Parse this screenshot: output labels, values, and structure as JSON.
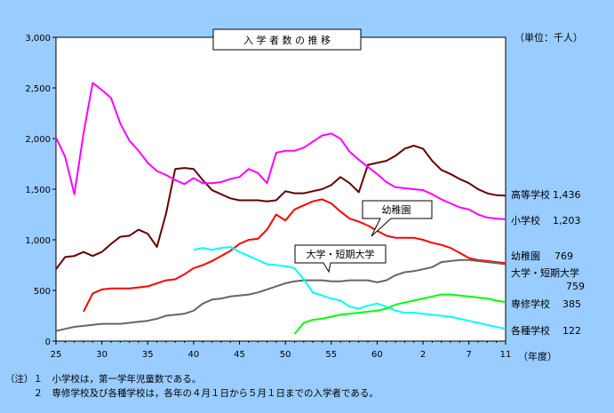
{
  "chart_data": {
    "type": "line",
    "title": "入 学 者 数 の 推 移",
    "unit_label": "（単位：千人）",
    "x_unit_label": "（年度）",
    "x_tick_labels": [
      "25",
      "30",
      "35",
      "40",
      "45",
      "50",
      "55",
      "60",
      "2",
      "7",
      "11"
    ],
    "y_tick_labels": [
      "0",
      "500",
      "1,000",
      "1,500",
      "2,000",
      "2,500",
      "3,000"
    ],
    "ylim": [
      0,
      3000
    ],
    "x_range": [
      "25",
      "11"
    ],
    "grid": false,
    "background": "#ffffff",
    "series": [
      {
        "key": "koko",
        "name": "高等学校",
        "end_value_label": "1,436",
        "color": "#660000",
        "x": [
          25,
          26,
          27,
          28,
          29,
          30,
          31,
          32,
          33,
          34,
          35,
          36,
          37,
          38,
          39,
          40,
          41,
          42,
          43,
          44,
          45,
          46,
          47,
          48,
          49,
          50,
          51,
          52,
          53,
          54,
          55,
          56,
          57,
          58,
          59,
          60,
          61,
          62,
          63,
          "元",
          2,
          3,
          4,
          5,
          6,
          7,
          8,
          9,
          10,
          11
        ],
        "values": [
          710,
          830,
          840,
          880,
          840,
          880,
          960,
          1030,
          1040,
          1100,
          1060,
          930,
          1260,
          1700,
          1710,
          1700,
          1590,
          1490,
          1450,
          1410,
          1390,
          1390,
          1390,
          1380,
          1390,
          1480,
          1460,
          1460,
          1480,
          1500,
          1540,
          1620,
          1560,
          1470,
          1740,
          1760,
          1780,
          1830,
          1900,
          1930,
          1900,
          1780,
          1690,
          1650,
          1600,
          1560,
          1500,
          1460,
          1440,
          1436
        ]
      },
      {
        "key": "sho",
        "name": "小学校",
        "end_value_label": "1,203",
        "color": "#ff00ff",
        "x": [
          25,
          26,
          27,
          28,
          29,
          30,
          31,
          32,
          33,
          34,
          35,
          36,
          37,
          38,
          39,
          40,
          41,
          42,
          43,
          44,
          45,
          46,
          47,
          48,
          49,
          50,
          51,
          52,
          53,
          54,
          55,
          56,
          57,
          58,
          59,
          60,
          61,
          62,
          63,
          "元",
          2,
          3,
          4,
          5,
          6,
          7,
          8,
          9,
          10,
          11
        ],
        "values": [
          2010,
          1820,
          1450,
          2050,
          2550,
          2480,
          2400,
          2150,
          1980,
          1880,
          1760,
          1680,
          1640,
          1590,
          1550,
          1610,
          1560,
          1560,
          1570,
          1600,
          1620,
          1700,
          1660,
          1560,
          1860,
          1880,
          1880,
          1910,
          1970,
          2030,
          2050,
          2000,
          1870,
          1790,
          1720,
          1650,
          1570,
          1520,
          1510,
          1500,
          1490,
          1450,
          1400,
          1360,
          1320,
          1300,
          1250,
          1220,
          1210,
          1203
        ]
      },
      {
        "key": "yochi",
        "name": "幼稚園",
        "end_value_label": "769",
        "callout": "幼稚園",
        "color": "#ff0000",
        "x": [
          28,
          29,
          30,
          31,
          32,
          33,
          34,
          35,
          36,
          37,
          38,
          39,
          40,
          41,
          42,
          43,
          44,
          45,
          46,
          47,
          48,
          49,
          50,
          51,
          52,
          53,
          54,
          55,
          56,
          57,
          58,
          59,
          60,
          61,
          62,
          63,
          "元",
          2,
          3,
          4,
          5,
          6,
          7,
          8,
          9,
          10,
          11
        ],
        "values": [
          290,
          470,
          510,
          520,
          520,
          520,
          530,
          540,
          570,
          600,
          610,
          660,
          720,
          750,
          790,
          840,
          890,
          960,
          1000,
          1010,
          1100,
          1250,
          1190,
          1300,
          1340,
          1380,
          1400,
          1360,
          1280,
          1210,
          1180,
          1140,
          1090,
          1040,
          1020,
          1020,
          1020,
          1000,
          970,
          950,
          920,
          870,
          820,
          800,
          790,
          780,
          769
        ]
      },
      {
        "key": "daigaku",
        "name": "大学・短期大学",
        "end_value_label": "759",
        "callout": "大学・短期大学",
        "color": "#666666",
        "x": [
          25,
          26,
          27,
          28,
          29,
          30,
          31,
          32,
          33,
          34,
          35,
          36,
          37,
          38,
          39,
          40,
          41,
          42,
          43,
          44,
          45,
          46,
          47,
          48,
          49,
          50,
          51,
          52,
          53,
          54,
          55,
          56,
          57,
          58,
          59,
          60,
          61,
          62,
          63,
          "元",
          2,
          3,
          4,
          5,
          6,
          7,
          8,
          9,
          10,
          11
        ],
        "values": [
          100,
          120,
          140,
          150,
          160,
          170,
          170,
          170,
          180,
          190,
          200,
          220,
          250,
          260,
          270,
          300,
          370,
          410,
          420,
          440,
          450,
          460,
          480,
          510,
          540,
          570,
          590,
          600,
          600,
          600,
          590,
          590,
          600,
          600,
          600,
          580,
          600,
          650,
          680,
          690,
          710,
          730,
          780,
          790,
          800,
          800,
          790,
          780,
          770,
          759
        ]
      },
      {
        "key": "kakushu",
        "name": "各種学校",
        "end_value_label": "122",
        "color": "#00ffff",
        "x": [
          40,
          41,
          42,
          43,
          44,
          45,
          46,
          47,
          48,
          49,
          50,
          51,
          52,
          53,
          54,
          55,
          56,
          57,
          58,
          59,
          60,
          61,
          62,
          63,
          "元",
          2,
          3,
          4,
          5,
          6,
          7,
          8,
          9,
          10,
          11
        ],
        "values": [
          900,
          920,
          900,
          920,
          930,
          880,
          840,
          800,
          760,
          750,
          740,
          720,
          610,
          480,
          450,
          420,
          400,
          340,
          320,
          350,
          370,
          340,
          300,
          280,
          280,
          270,
          260,
          250,
          240,
          220,
          200,
          180,
          160,
          140,
          122
        ]
      },
      {
        "key": "senshu",
        "name": "専修学校",
        "end_value_label": "385",
        "color": "#00ff00",
        "x": [
          51,
          52,
          53,
          54,
          55,
          56,
          57,
          58,
          59,
          60,
          61,
          62,
          63,
          "元",
          2,
          3,
          4,
          5,
          6,
          7,
          8,
          9,
          10,
          11
        ],
        "values": [
          70,
          180,
          210,
          220,
          240,
          260,
          270,
          280,
          290,
          300,
          320,
          360,
          380,
          400,
          420,
          440,
          460,
          460,
          450,
          440,
          430,
          420,
          400,
          385
        ]
      }
    ]
  },
  "notes": [
    "（注）１　小学校は，第一学年児童数である。",
    "　　　２　専修学校及び各種学校は，各年の４月１日から５月１日までの入学者である。"
  ]
}
